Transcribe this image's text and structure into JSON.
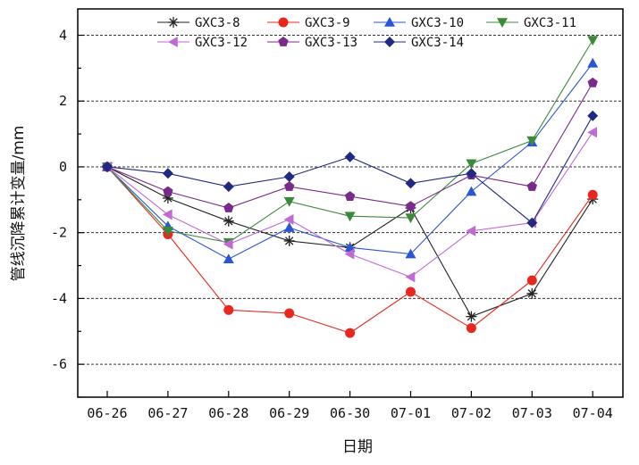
{
  "chart_data": {
    "type": "line",
    "title": "",
    "xlabel": "日期",
    "ylabel": "管线沉降累计变量/mm",
    "categories": [
      "06-26",
      "06-27",
      "06-28",
      "06-29",
      "06-30",
      "07-01",
      "07-02",
      "07-03",
      "07-04"
    ],
    "ylim": [
      -7,
      4.8
    ],
    "yticks": [
      -6,
      -4,
      -2,
      0,
      2,
      4
    ],
    "ytick_labels": [
      "-6",
      "-4",
      "-2",
      "0",
      "2",
      "4"
    ],
    "grid": "dashed horizontal at major ticks",
    "legend_position": "top",
    "series": [
      {
        "name": "GXC3-8",
        "marker": "asterisk",
        "color": "#222222",
        "values": [
          0,
          -0.95,
          -1.65,
          -2.25,
          -2.45,
          -1.25,
          -4.55,
          -3.85,
          -0.98
        ]
      },
      {
        "name": "GXC3-9",
        "marker": "circle",
        "color": "#e8281e",
        "values": [
          0,
          -2.05,
          -4.35,
          -4.45,
          -5.05,
          -3.8,
          -4.9,
          -3.45,
          -0.85
        ]
      },
      {
        "name": "GXC3-10",
        "marker": "triangle-up",
        "color": "#2a56d4",
        "values": [
          0,
          -1.8,
          -2.8,
          -1.85,
          -2.45,
          -2.65,
          -0.75,
          0.75,
          3.15
        ]
      },
      {
        "name": "GXC3-11",
        "marker": "triangle-down",
        "color": "#3a8a3a",
        "values": [
          0,
          -1.95,
          -2.3,
          -1.05,
          -1.5,
          -1.55,
          0.1,
          0.8,
          3.85
        ]
      },
      {
        "name": "GXC3-12",
        "marker": "triangle-left",
        "color": "#c06ad4",
        "values": [
          0,
          -1.45,
          -2.35,
          -1.6,
          -2.65,
          -3.35,
          -1.95,
          -1.7,
          1.05
        ]
      },
      {
        "name": "GXC3-13",
        "marker": "pentagon",
        "color": "#7a2a8a",
        "values": [
          0,
          -0.75,
          -1.25,
          -0.6,
          -0.9,
          -1.2,
          -0.25,
          -0.6,
          2.55
        ]
      },
      {
        "name": "GXC3-14",
        "marker": "diamond",
        "color": "#1f2a80",
        "values": [
          0,
          -0.2,
          -0.6,
          -0.3,
          0.3,
          -0.5,
          -0.2,
          -1.7,
          1.55
        ]
      }
    ]
  }
}
